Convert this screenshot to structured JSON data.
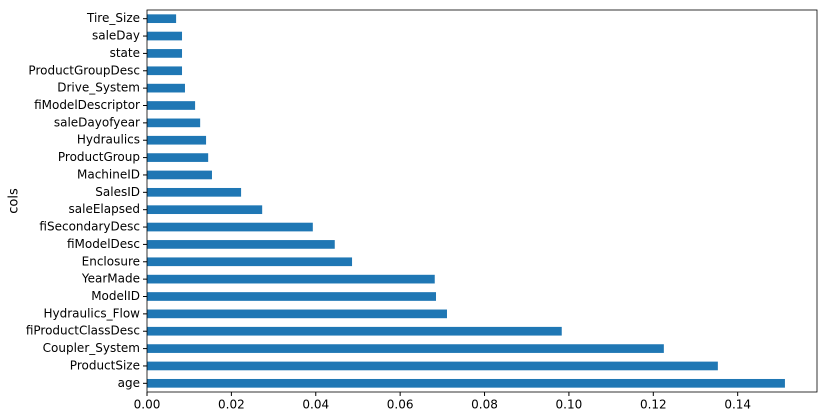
{
  "chart_data": {
    "type": "barh",
    "ylabel": "cols",
    "categories": [
      "Tire_Size",
      "saleDay",
      "state",
      "ProductGroupDesc",
      "Drive_System",
      "fiModelDescriptor",
      "saleDayofyear",
      "Hydraulics",
      "ProductGroup",
      "MachineID",
      "SalesID",
      "saleElapsed",
      "fiSecondaryDesc",
      "fiModelDesc",
      "Enclosure",
      "YearMade",
      "ModelID",
      "Hydraulics_Flow",
      "fiProductClassDesc",
      "Coupler_System",
      "ProductSize",
      "age"
    ],
    "values": [
      0.0069,
      0.0083,
      0.0083,
      0.0083,
      0.009,
      0.0114,
      0.0126,
      0.014,
      0.0145,
      0.0154,
      0.0223,
      0.0273,
      0.0393,
      0.0445,
      0.0486,
      0.0682,
      0.0685,
      0.0711,
      0.0983,
      0.1225,
      0.1353,
      0.1512
    ],
    "color": "#1f77b4",
    "xlim": [
      0,
      0.1588
    ],
    "xticks": [
      {
        "value": 0,
        "label": "0.00"
      },
      {
        "value": 0.02,
        "label": "0.02"
      },
      {
        "value": 0.04,
        "label": "0.04"
      },
      {
        "value": 0.06,
        "label": "0.06"
      },
      {
        "value": 0.08,
        "label": "0.08"
      },
      {
        "value": 0.1,
        "label": "0.10"
      },
      {
        "value": 0.12,
        "label": "0.12"
      },
      {
        "value": 0.14,
        "label": "0.14"
      }
    ]
  }
}
